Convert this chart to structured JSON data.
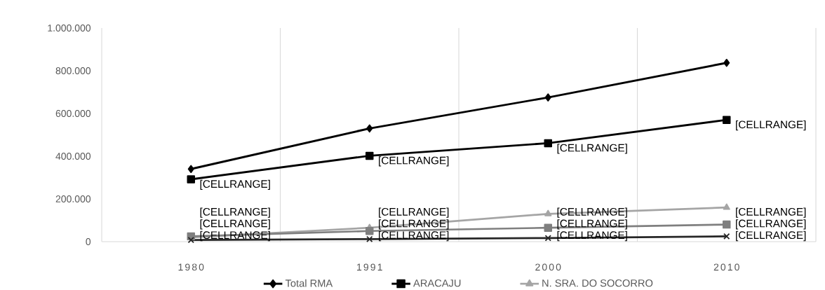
{
  "chart_data": {
    "type": "line",
    "categories": [
      "1980",
      "1991",
      "2000",
      "2010"
    ],
    "ylim": [
      0,
      1000000
    ],
    "yticks": [
      {
        "value": 0,
        "label": "0"
      },
      {
        "value": 200000,
        "label": "200.000"
      },
      {
        "value": 400000,
        "label": "400.000"
      },
      {
        "value": 600000,
        "label": "600.000"
      },
      {
        "value": 800000,
        "label": "800.000"
      },
      {
        "value": 1000000,
        "label": "1.000.000"
      }
    ],
    "grid": "x",
    "legend": "bottom",
    "line_style": "solid",
    "series": [
      {
        "name": "Total RMA",
        "color": "#000000",
        "marker": "diamond",
        "values": [
          340000,
          530000,
          675000,
          837000
        ]
      },
      {
        "name": "ARACAJU",
        "color": "#000000",
        "marker": "square",
        "values": [
          292000,
          402000,
          461000,
          570000
        ],
        "value_labels": [
          "[CELLRANGE]",
          "[CELLRANGE]",
          "[CELLRANGE]",
          "[CELLRANGE]"
        ]
      },
      {
        "name": "N. SRA. DO SOCORRO",
        "color": "#a5a5a5",
        "marker": "triangle",
        "values": [
          20000,
          65000,
          130000,
          160000
        ],
        "value_labels": [
          "[CELLRANGE]",
          "[CELLRANGE]",
          "[CELLRANGE]",
          "[CELLRANGE]"
        ]
      },
      {
        "color": "#7f7f7f",
        "marker": "square",
        "values": [
          25000,
          50000,
          65000,
          80000
        ],
        "value_labels": [
          "[CELLRANGE]",
          "[CELLRANGE]",
          "[CELLRANGE]",
          "[CELLRANGE]"
        ]
      },
      {
        "color": "#262626",
        "marker": "cross",
        "values": [
          8000,
          12000,
          17000,
          25000
        ],
        "value_labels": [
          "[CELLRANGE]",
          "[CELLRANGE]",
          "[CELLRANGE]",
          "[CELLRANGE]"
        ]
      }
    ]
  }
}
